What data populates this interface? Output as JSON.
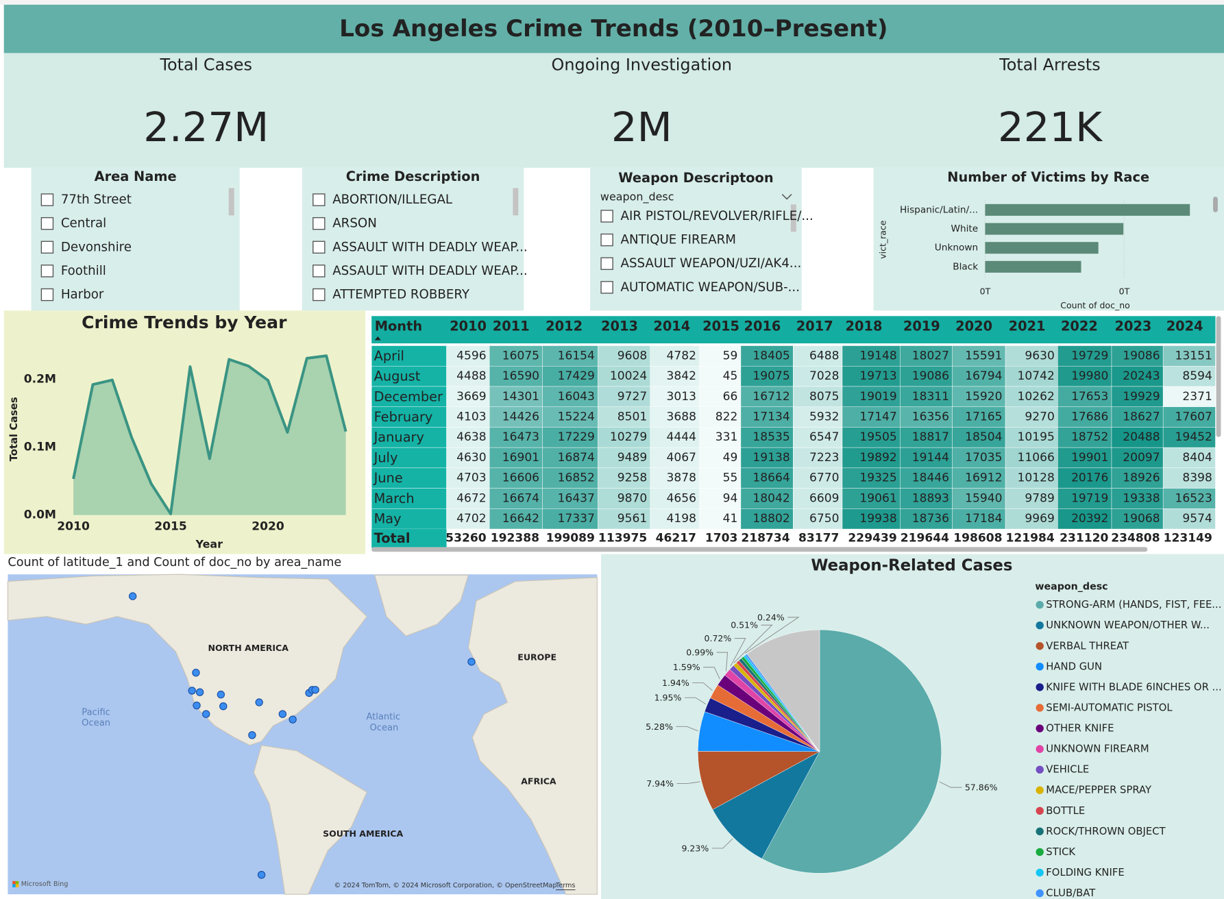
{
  "header": {
    "title": "Los Angeles Crime Trends (2010–Present)"
  },
  "kpis": [
    {
      "label": "Total Cases",
      "value": "2.27M"
    },
    {
      "label": "Ongoing Investigation",
      "value": "2M"
    },
    {
      "label": "Total Arrests",
      "value": "221K"
    }
  ],
  "slicers": [
    {
      "title": "Area Name",
      "items": [
        "77th Street",
        "Central",
        "Devonshire",
        "Foothill",
        "Harbor"
      ]
    },
    {
      "title": "Crime Description",
      "items": [
        "ABORTION/ILLEGAL",
        "ARSON",
        "ASSAULT WITH DEADLY WEAP...",
        "ASSAULT WITH DEADLY WEAP...",
        "ATTEMPTED ROBBERY"
      ]
    },
    {
      "title": "Weapon Descriptoon",
      "field": "weapon_desc",
      "items": [
        "AIR PISTOL/REVOLVER/RIFLE/...",
        "ANTIQUE FIREARM",
        "ASSAULT WEAPON/UZI/AK4...",
        "AUTOMATIC WEAPON/SUB-..."
      ]
    }
  ],
  "chart_data": [
    {
      "type": "bar",
      "orientation": "horizontal",
      "title": "Number of Victims by Race",
      "categories": [
        "Hispanic/Latin/...",
        "White",
        "Unknown",
        "Black"
      ],
      "values": [
        736000,
        497000,
        407000,
        345000
      ],
      "color": "#5b8a78",
      "xlim": [
        0,
        780000
      ],
      "xticks": [
        {
          "value": 0,
          "label": "0T"
        },
        {
          "value": 500000,
          "label": "0T"
        }
      ],
      "xlabel": "Count of doc_no",
      "ylabel": "vict_race",
      "grid": true
    },
    {
      "type": "area",
      "title": "Crime Trends by Year",
      "x": [
        2010,
        2011,
        2012,
        2013,
        2014,
        2015,
        2016,
        2017,
        2018,
        2019,
        2020,
        2021,
        2022,
        2023,
        2024
      ],
      "values": [
        53260,
        192388,
        199089,
        113975,
        46217,
        1703,
        218734,
        83177,
        229439,
        219644,
        198608,
        121984,
        231120,
        234808,
        123149
      ],
      "color": "#3a9483",
      "fill": "#a9d2af",
      "xlim": [
        2010,
        2024
      ],
      "xticks": [
        2010,
        2015,
        2020
      ],
      "ylim": [
        0,
        260000
      ],
      "yticks": [
        {
          "value": 0,
          "label": "0.0M"
        },
        {
          "value": 100000,
          "label": "0.1M"
        },
        {
          "value": 200000,
          "label": "0.2M"
        }
      ],
      "xlabel": "Year",
      "ylabel": "Total Cases",
      "grid": false
    },
    {
      "type": "pie",
      "title": "Weapon-Related Cases",
      "legend_title": "weapon_desc",
      "categories": [
        "STRONG-ARM (HANDS, FIST, FEE...",
        "UNKNOWN WEAPON/OTHER W...",
        "VERBAL THREAT",
        "HAND GUN",
        "KNIFE WITH BLADE 6INCHES OR ...",
        "SEMI-AUTOMATIC PISTOL",
        "OTHER KNIFE",
        "UNKNOWN FIREARM",
        "VEHICLE",
        "MACE/PEPPER SPRAY",
        "BOTTLE",
        "ROCK/THROWN OBJECT",
        "STICK",
        "FOLDING KNIFE",
        "CLUB/BAT"
      ],
      "values": [
        57.86,
        9.23,
        7.94,
        5.28,
        1.95,
        1.94,
        1.59,
        0.99,
        0.72,
        0.51,
        0.45,
        0.42,
        0.38,
        0.3,
        0.24
      ],
      "value_labels": [
        "57.86%",
        "9.23%",
        "7.94%",
        "5.28%",
        "1.95%",
        "1.94%",
        "1.59%",
        "0.99%",
        "0.72%",
        "0.51%",
        null,
        null,
        null,
        null,
        "0.24%"
      ],
      "colors": [
        "#5aabaa",
        "#12789e",
        "#b5532a",
        "#118dff",
        "#1a1f8c",
        "#e66c37",
        "#6b007b",
        "#e044a7",
        "#744ec2",
        "#d9b300",
        "#d64550",
        "#197278",
        "#1aab40",
        "#15c6f4",
        "#4092ff"
      ]
    }
  ],
  "table": {
    "columns": [
      "Month",
      "2010",
      "2011",
      "2012",
      "2013",
      "2014",
      "2015",
      "2016",
      "2017",
      "2018",
      "2019",
      "2020",
      "2021",
      "2022",
      "2023",
      "2024"
    ],
    "rows": [
      [
        "April",
        4596,
        16075,
        16154,
        9608,
        4782,
        59,
        18405,
        6488,
        19148,
        18027,
        15591,
        9630,
        19729,
        19086,
        13151
      ],
      [
        "August",
        4488,
        16590,
        17429,
        10024,
        3842,
        45,
        19075,
        7028,
        19713,
        19086,
        16794,
        10742,
        19980,
        20243,
        8594
      ],
      [
        "December",
        3669,
        14301,
        16043,
        9727,
        3013,
        66,
        16712,
        8075,
        19019,
        18311,
        15920,
        10262,
        17653,
        19929,
        2371
      ],
      [
        "February",
        4103,
        14426,
        15224,
        8501,
        3688,
        822,
        17134,
        5932,
        17147,
        16356,
        17165,
        9270,
        17686,
        18627,
        17607
      ],
      [
        "January",
        4638,
        16473,
        17229,
        10279,
        4444,
        331,
        18535,
        6547,
        19505,
        18817,
        18504,
        10195,
        18752,
        20488,
        19452
      ],
      [
        "July",
        4630,
        16901,
        16874,
        9489,
        4067,
        49,
        19138,
        7223,
        19892,
        19144,
        17035,
        11066,
        19901,
        20097,
        8404
      ],
      [
        "June",
        4703,
        16606,
        16852,
        9258,
        3878,
        55,
        18664,
        6770,
        19325,
        18446,
        16912,
        10128,
        20176,
        18926,
        8398
      ],
      [
        "March",
        4672,
        16674,
        16437,
        9870,
        4656,
        94,
        18042,
        6609,
        19061,
        18893,
        15940,
        9789,
        19719,
        19338,
        16523
      ],
      [
        "May",
        4702,
        16642,
        17337,
        9561,
        4198,
        41,
        18802,
        6750,
        19938,
        18736,
        17184,
        9969,
        20392,
        19068,
        9574
      ]
    ],
    "total": [
      "Total",
      53260,
      192388,
      199089,
      113975,
      46217,
      1703,
      218734,
      83177,
      229439,
      219644,
      198608,
      121984,
      231120,
      234808,
      123149
    ]
  },
  "map": {
    "title": "Count of latitude_1 and Count of doc_no by area_name",
    "labels": [
      "NORTH AMERICA",
      "EUROPE",
      "Pacific",
      "Ocean",
      "Atlantic",
      "Ocean",
      "AFRICA",
      "SOUTH AMERICA"
    ],
    "logo": "Microsoft Bing",
    "attribution": "© 2024 TomTom, © 2024 Microsoft Corporation, © OpenStreetMap",
    "terms": "Terms"
  }
}
